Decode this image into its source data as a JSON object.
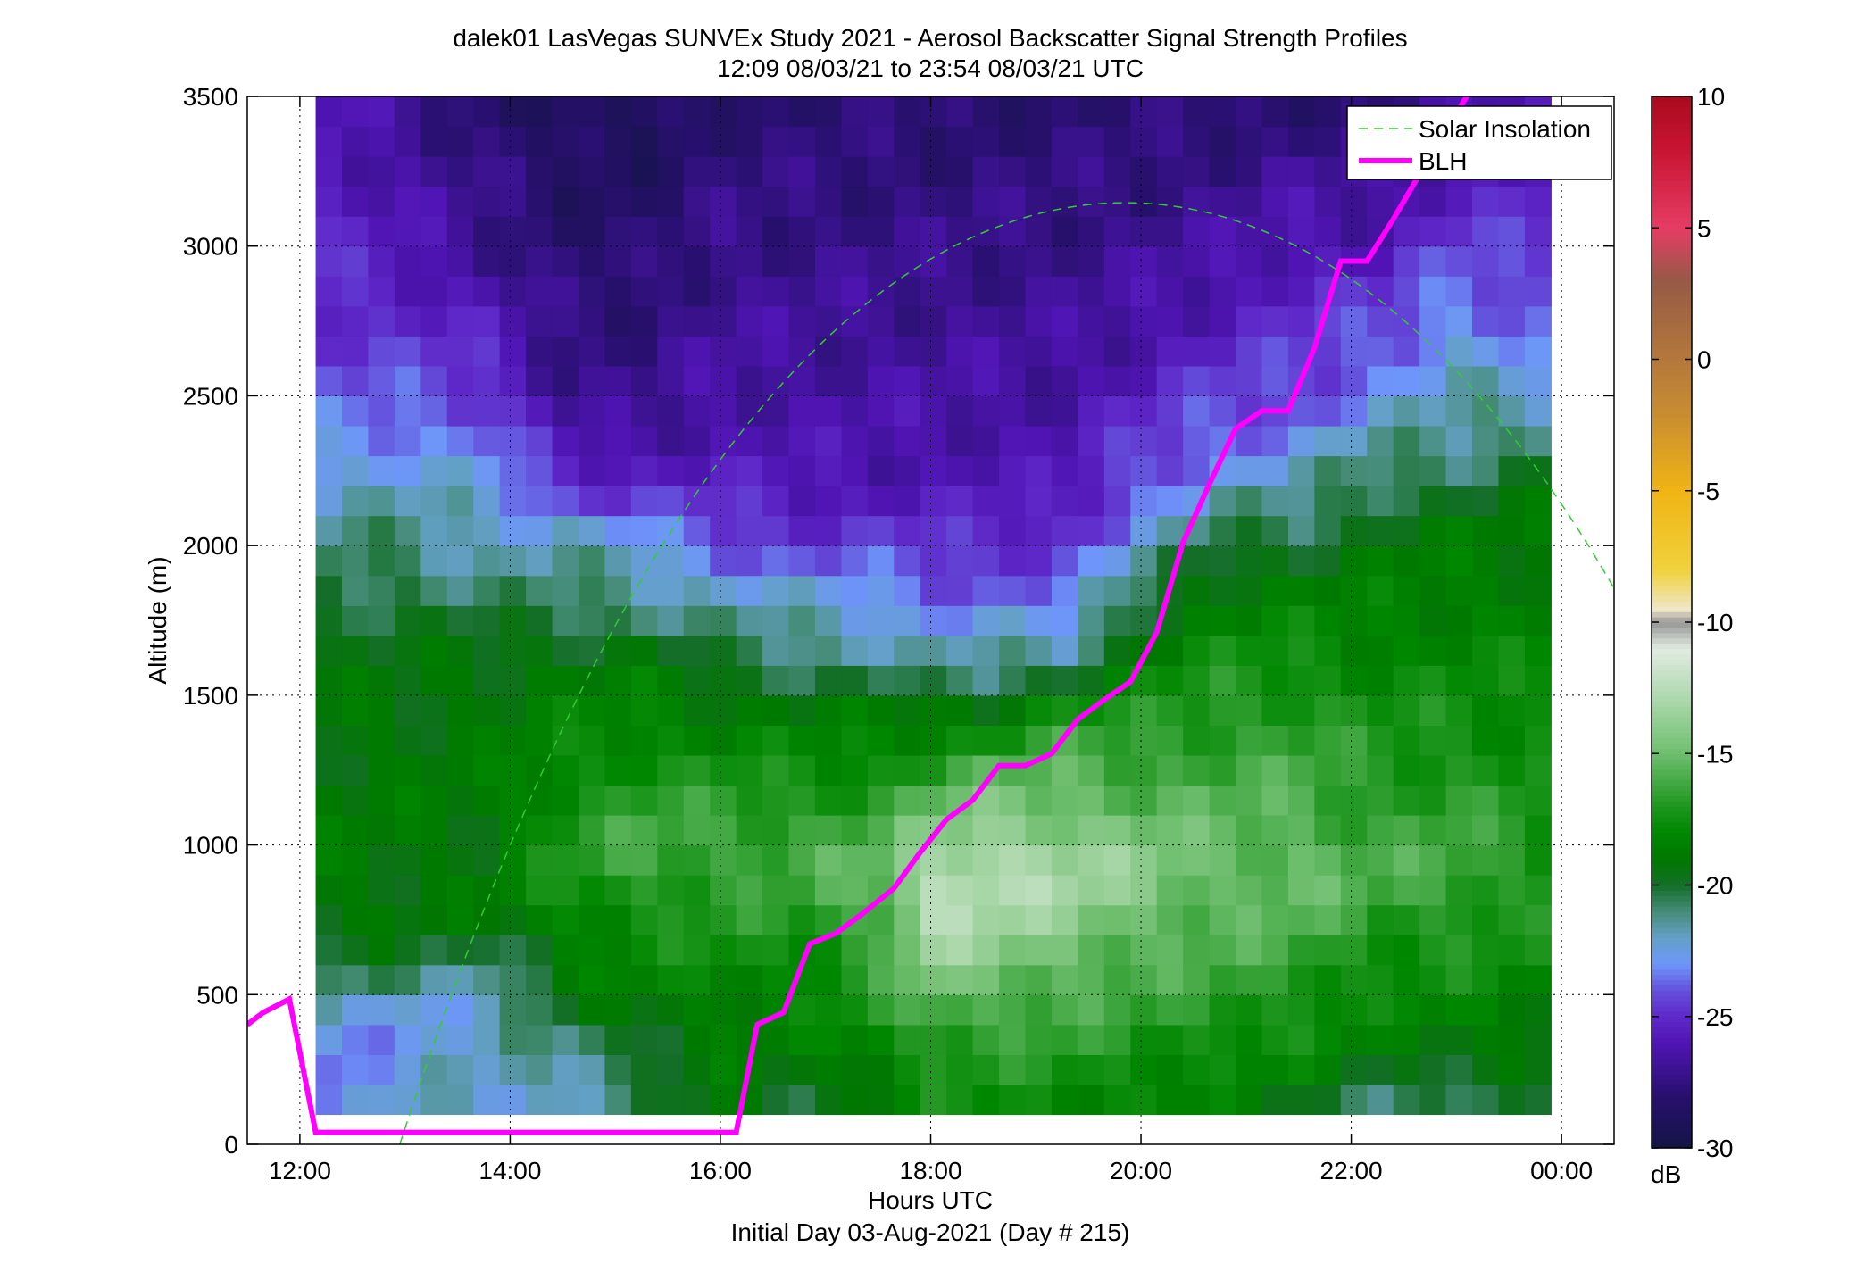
{
  "chart_data": {
    "type": "heatmap",
    "title": "dalek01 LasVegas SUNVEx Study 2021 - Aerosol Backscatter Signal Strength Profiles",
    "subtitle": "12:09 08/03/21 to 23:54 08/03/21  UTC",
    "xlabel": "Hours UTC",
    "xlabel2": "Initial Day 03-Aug-2021 (Day # 215)",
    "ylabel": "Altitude (m)",
    "xlim": [
      11.5,
      24.5
    ],
    "ylim": [
      0,
      3500
    ],
    "x_ticks": [
      {
        "value": 12,
        "label": "12:00"
      },
      {
        "value": 14,
        "label": "14:00"
      },
      {
        "value": 16,
        "label": "16:00"
      },
      {
        "value": 18,
        "label": "18:00"
      },
      {
        "value": 20,
        "label": "20:00"
      },
      {
        "value": 22,
        "label": "22:00"
      },
      {
        "value": 24,
        "label": "00:00"
      }
    ],
    "y_ticks": [
      {
        "value": 0,
        "label": "0"
      },
      {
        "value": 500,
        "label": "500"
      },
      {
        "value": 1000,
        "label": "1000"
      },
      {
        "value": 1500,
        "label": "1500"
      },
      {
        "value": 2000,
        "label": "2000"
      },
      {
        "value": 2500,
        "label": "2500"
      },
      {
        "value": 3000,
        "label": "3000"
      },
      {
        "value": 3500,
        "label": "3500"
      }
    ],
    "grid": true,
    "legend_position": "top-right",
    "colorbar": {
      "unit_label": "dB",
      "range": [
        -30,
        10
      ],
      "ticks": [
        {
          "value": 10,
          "label": "10"
        },
        {
          "value": 5,
          "label": "5"
        },
        {
          "value": 0,
          "label": "0"
        },
        {
          "value": -5,
          "label": "-5"
        },
        {
          "value": -10,
          "label": "-10"
        },
        {
          "value": -15,
          "label": "-15"
        },
        {
          "value": -20,
          "label": "-20"
        },
        {
          "value": -25,
          "label": "-25"
        },
        {
          "value": -30,
          "label": "-30"
        }
      ]
    },
    "heatmap": {
      "time_range": [
        12.15,
        23.9
      ],
      "altitude_range": [
        100,
        3500
      ],
      "profiles": [
        {
          "t": 12.25,
          "knots": [
            [
              100,
              -23
            ],
            [
              200,
              -24
            ],
            [
              450,
              -22
            ],
            [
              700,
              -19
            ],
            [
              1400,
              -19
            ],
            [
              1800,
              -20
            ],
            [
              2000,
              -21
            ],
            [
              2200,
              -22
            ],
            [
              2500,
              -24
            ],
            [
              2900,
              -25
            ],
            [
              3500,
              -26
            ]
          ]
        },
        {
          "t": 13.0,
          "knots": [
            [
              100,
              -22
            ],
            [
              400,
              -23
            ],
            [
              550,
              -21
            ],
            [
              750,
              -19
            ],
            [
              1400,
              -19
            ],
            [
              1800,
              -20
            ],
            [
              2000,
              -21
            ],
            [
              2200,
              -22
            ],
            [
              2500,
              -24
            ],
            [
              3000,
              -26
            ],
            [
              3500,
              -27
            ]
          ]
        },
        {
          "t": 13.75,
          "knots": [
            [
              100,
              -22
            ],
            [
              450,
              -22
            ],
            [
              600,
              -21
            ],
            [
              800,
              -19
            ],
            [
              1600,
              -19
            ],
            [
              1850,
              -21
            ],
            [
              2050,
              -22
            ],
            [
              2300,
              -23
            ],
            [
              2600,
              -25
            ],
            [
              3000,
              -27
            ],
            [
              3500,
              -28
            ]
          ]
        },
        {
          "t": 14.5,
          "knots": [
            [
              100,
              -22
            ],
            [
              350,
              -21
            ],
            [
              550,
              -19
            ],
            [
              1000,
              -17
            ],
            [
              1600,
              -19
            ],
            [
              1850,
              -21
            ],
            [
              2050,
              -22
            ],
            [
              2200,
              -25
            ],
            [
              2500,
              -27
            ],
            [
              3500,
              -29
            ]
          ]
        },
        {
          "t": 15.25,
          "knots": [
            [
              100,
              -21
            ],
            [
              250,
              -20
            ],
            [
              450,
              -19
            ],
            [
              1000,
              -16
            ],
            [
              1600,
              -19
            ],
            [
              1800,
              -21
            ],
            [
              1950,
              -22
            ],
            [
              2100,
              -24
            ],
            [
              2400,
              -27
            ],
            [
              3500,
              -29
            ]
          ]
        },
        {
          "t": 16.0,
          "knots": [
            [
              100,
              -19
            ],
            [
              300,
              -19
            ],
            [
              1000,
              -16
            ],
            [
              1500,
              -19
            ],
            [
              1700,
              -21
            ],
            [
              1850,
              -22
            ],
            [
              2000,
              -24
            ],
            [
              2300,
              -26
            ],
            [
              3500,
              -28
            ]
          ]
        },
        {
          "t": 16.75,
          "knots": [
            [
              100,
              -20
            ],
            [
              300,
              -19
            ],
            [
              1000,
              -16
            ],
            [
              1450,
              -19
            ],
            [
              1650,
              -21
            ],
            [
              1800,
              -22
            ],
            [
              1950,
              -24
            ],
            [
              2200,
              -26
            ],
            [
              3500,
              -28
            ]
          ]
        },
        {
          "t": 17.5,
          "knots": [
            [
              100,
              -19
            ],
            [
              300,
              -18
            ],
            [
              900,
              -15
            ],
            [
              1450,
              -19
            ],
            [
              1600,
              -21
            ],
            [
              1750,
              -22
            ],
            [
              1950,
              -24
            ],
            [
              2200,
              -26
            ],
            [
              3500,
              -28
            ]
          ]
        },
        {
          "t": 18.0,
          "knots": [
            [
              100,
              -18
            ],
            [
              300,
              -17
            ],
            [
              800,
              -12
            ],
            [
              1200,
              -16
            ],
            [
              1450,
              -19
            ],
            [
              1550,
              -21
            ],
            [
              1750,
              -23
            ],
            [
              1900,
              -24
            ],
            [
              2200,
              -26
            ],
            [
              3500,
              -28
            ]
          ]
        },
        {
          "t": 18.5,
          "knots": [
            [
              100,
              -18
            ],
            [
              300,
              -17
            ],
            [
              900,
              -12
            ],
            [
              1250,
              -16
            ],
            [
              1450,
              -19
            ],
            [
              1550,
              -21
            ],
            [
              1700,
              -22
            ],
            [
              1850,
              -24
            ],
            [
              2200,
              -26
            ],
            [
              3500,
              -28
            ]
          ]
        },
        {
          "t": 19.25,
          "knots": [
            [
              100,
              -18
            ],
            [
              300,
              -17
            ],
            [
              900,
              -13
            ],
            [
              1300,
              -16
            ],
            [
              1500,
              -18
            ],
            [
              1600,
              -21
            ],
            [
              1750,
              -23
            ],
            [
              1900,
              -24
            ],
            [
              2200,
              -26
            ],
            [
              3500,
              -28
            ]
          ]
        },
        {
          "t": 20.0,
          "knots": [
            [
              100,
              -18
            ],
            [
              400,
              -17
            ],
            [
              900,
              -14
            ],
            [
              1400,
              -17
            ],
            [
              1700,
              -19
            ],
            [
              1900,
              -21
            ],
            [
              2050,
              -23
            ],
            [
              2250,
              -24
            ],
            [
              2600,
              -26
            ],
            [
              3500,
              -28
            ]
          ]
        },
        {
          "t": 20.75,
          "knots": [
            [
              100,
              -19
            ],
            [
              400,
              -17
            ],
            [
              900,
              -15
            ],
            [
              1500,
              -17
            ],
            [
              1900,
              -19
            ],
            [
              2100,
              -21
            ],
            [
              2250,
              -23
            ],
            [
              2450,
              -24
            ],
            [
              2800,
              -26
            ],
            [
              3500,
              -28
            ]
          ]
        },
        {
          "t": 21.5,
          "knots": [
            [
              100,
              -20
            ],
            [
              300,
              -18
            ],
            [
              900,
              -15
            ],
            [
              1500,
              -17
            ],
            [
              1900,
              -19
            ],
            [
              2100,
              -21
            ],
            [
              2250,
              -22
            ],
            [
              2450,
              -24
            ],
            [
              2800,
              -25
            ],
            [
              3500,
              -28
            ]
          ]
        },
        {
          "t": 22.25,
          "knots": [
            [
              100,
              -21
            ],
            [
              300,
              -19
            ],
            [
              900,
              -16
            ],
            [
              1600,
              -18
            ],
            [
              2000,
              -19
            ],
            [
              2300,
              -21
            ],
            [
              2500,
              -23
            ],
            [
              2700,
              -24
            ],
            [
              3000,
              -26
            ],
            [
              3500,
              -28
            ]
          ]
        },
        {
          "t": 23.0,
          "knots": [
            [
              100,
              -21
            ],
            [
              300,
              -19
            ],
            [
              900,
              -16
            ],
            [
              1600,
              -18
            ],
            [
              2050,
              -19
            ],
            [
              2300,
              -21
            ],
            [
              2550,
              -22
            ],
            [
              2800,
              -23
            ],
            [
              3100,
              -25
            ],
            [
              3500,
              -27
            ]
          ]
        },
        {
          "t": 23.85,
          "knots": [
            [
              100,
              -21
            ],
            [
              300,
              -19
            ],
            [
              900,
              -17
            ],
            [
              1600,
              -18
            ],
            [
              2050,
              -19
            ],
            [
              2300,
              -20
            ],
            [
              2500,
              -22
            ],
            [
              2700,
              -24
            ],
            [
              3500,
              -26
            ]
          ]
        }
      ]
    },
    "series": [
      {
        "name": "Solar Insolation",
        "color": "#33cc33",
        "style": "dashed",
        "peak": {
          "x": 19.85,
          "y": 3145
        },
        "zero_crossing_x": 12.95,
        "x_end": 24.5
      },
      {
        "name": "BLH",
        "color": "#ff00ff",
        "style": "solid",
        "points": [
          [
            11.5,
            400
          ],
          [
            11.65,
            440
          ],
          [
            11.9,
            485
          ],
          [
            12.15,
            40
          ],
          [
            16.15,
            40
          ],
          [
            16.35,
            400
          ],
          [
            16.6,
            440
          ],
          [
            16.85,
            670
          ],
          [
            17.1,
            705
          ],
          [
            17.35,
            770
          ],
          [
            17.65,
            855
          ],
          [
            17.9,
            975
          ],
          [
            18.15,
            1085
          ],
          [
            18.4,
            1150
          ],
          [
            18.65,
            1265
          ],
          [
            18.9,
            1265
          ],
          [
            19.15,
            1305
          ],
          [
            19.4,
            1420
          ],
          [
            19.65,
            1485
          ],
          [
            19.9,
            1545
          ],
          [
            20.15,
            1710
          ],
          [
            20.4,
            2010
          ],
          [
            20.65,
            2205
          ],
          [
            20.9,
            2390
          ],
          [
            21.15,
            2450
          ],
          [
            21.4,
            2450
          ],
          [
            21.65,
            2660
          ],
          [
            21.9,
            2950
          ],
          [
            22.15,
            2950
          ],
          [
            22.4,
            3090
          ],
          [
            22.65,
            3240
          ],
          [
            22.9,
            3385
          ],
          [
            23.15,
            3530
          ]
        ]
      }
    ]
  }
}
